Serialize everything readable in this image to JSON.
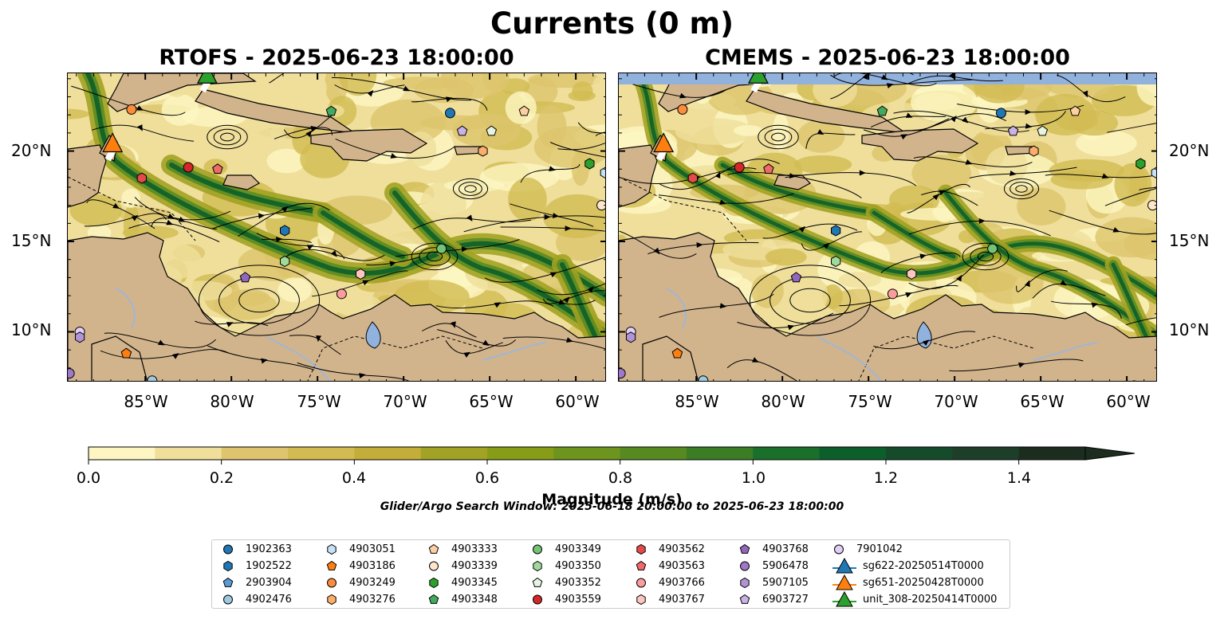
{
  "figure": {
    "title": "Currents (0 m)",
    "search_window": "Glider/Argo Search Window: 2025-06-18 20:00:00 to 2025-06-23 18:00:00"
  },
  "chart_data": [
    {
      "type": "heatmap",
      "title": "RTOFS - 2025-06-23 18:00:00",
      "x_ticks": [
        "85°W",
        "80°W",
        "75°W",
        "70°W",
        "65°W",
        "60°W"
      ],
      "y_ticks": [
        "20°N",
        "15°N",
        "10°N"
      ],
      "xlim": [
        -89.5,
        -58.2
      ],
      "ylim": [
        7.2,
        24.3
      ],
      "y_ticks_side": "left"
    },
    {
      "type": "heatmap",
      "title": "CMEMS - 2025-06-23 18:00:00",
      "x_ticks": [
        "85°W",
        "80°W",
        "75°W",
        "70°W",
        "65°W",
        "60°W"
      ],
      "y_ticks": [
        "20°N",
        "15°N",
        "10°N"
      ],
      "xlim": [
        -89.5,
        -58.2
      ],
      "ylim": [
        7.2,
        24.3
      ],
      "y_ticks_side": "right"
    }
  ],
  "colorbar": {
    "label": "Magnitude (m/s)",
    "ticks": [
      "0.0",
      "0.2",
      "0.4",
      "0.6",
      "0.8",
      "1.0",
      "1.2",
      "1.4"
    ],
    "range": [
      0,
      1.5
    ],
    "extend": "max",
    "colors": [
      "#fdf6c2",
      "#efdf9b",
      "#ddc46d",
      "#d2bc52",
      "#c2ae39",
      "#a2a224",
      "#889d16",
      "#6d941c",
      "#568a21",
      "#3a7d25",
      "#1a6f2b",
      "#0c5f2a",
      "#154b2b",
      "#1d3f29",
      "#1c2d1f"
    ]
  },
  "legend": {
    "items": [
      {
        "label": "1902363",
        "marker": "circle",
        "color": "#1f77b4"
      },
      {
        "label": "1902522",
        "marker": "hexagon",
        "color": "#1f77b4"
      },
      {
        "label": "2903904",
        "marker": "pentagon",
        "color": "#5b9bd5"
      },
      {
        "label": "4902476",
        "marker": "circle",
        "color": "#9ecae1"
      },
      {
        "label": "4903051",
        "marker": "hexagon",
        "color": "#c6e2f7"
      },
      {
        "label": "4903186",
        "marker": "pentagon",
        "color": "#ff7f0e"
      },
      {
        "label": "4903249",
        "marker": "circle",
        "color": "#fd8d3c"
      },
      {
        "label": "4903276",
        "marker": "hexagon",
        "color": "#fdae6b"
      },
      {
        "label": "4903333",
        "marker": "pentagon",
        "color": "#fdd0a2"
      },
      {
        "label": "4903339",
        "marker": "circle",
        "color": "#fee6ce"
      },
      {
        "label": "4903345",
        "marker": "hexagon",
        "color": "#2ca02c"
      },
      {
        "label": "4903348",
        "marker": "pentagon",
        "color": "#41ab5d"
      },
      {
        "label": "4903349",
        "marker": "circle",
        "color": "#74c476"
      },
      {
        "label": "4903350",
        "marker": "hexagon",
        "color": "#a1d99b"
      },
      {
        "label": "4903352",
        "marker": "pentagon",
        "color": "#e5f5e0"
      },
      {
        "label": "4903559",
        "marker": "circle",
        "color": "#d62728"
      },
      {
        "label": "4903562",
        "marker": "hexagon",
        "color": "#e34a4a"
      },
      {
        "label": "4903563",
        "marker": "pentagon",
        "color": "#f06a6a"
      },
      {
        "label": "4903766",
        "marker": "circle",
        "color": "#fc9d9d"
      },
      {
        "label": "4903767",
        "marker": "hexagon",
        "color": "#fcc5c0"
      },
      {
        "label": "4903768",
        "marker": "pentagon",
        "color": "#9467bd"
      },
      {
        "label": "5906478",
        "marker": "circle",
        "color": "#9e78c9"
      },
      {
        "label": "5907105",
        "marker": "hexagon",
        "color": "#b294d4"
      },
      {
        "label": "6903727",
        "marker": "pentagon",
        "color": "#c8b2e6"
      },
      {
        "label": "7901042",
        "marker": "circle",
        "color": "#e1cff5"
      },
      {
        "label": "sg622-20250514T0000",
        "marker": "triangle-line",
        "color": "#1f77b4"
      },
      {
        "label": "sg651-20250428T0000",
        "marker": "triangle-line",
        "color": "#ff7f0e"
      },
      {
        "label": "unit_308-20250414T0000",
        "marker": "triangle-line",
        "color": "#2ca02c"
      }
    ]
  },
  "floats": [
    {
      "id": "4903249",
      "lon": -85.8,
      "lat": 22.3,
      "shape": "circle",
      "color": "#fd8d3c"
    },
    {
      "id": "4903559",
      "lon": -82.5,
      "lat": 19.1,
      "shape": "circle",
      "color": "#d62728"
    },
    {
      "id": "4903563",
      "lon": -80.8,
      "lat": 19.0,
      "shape": "pentagon",
      "color": "#f06a6a"
    },
    {
      "id": "4903562",
      "lon": -85.2,
      "lat": 18.5,
      "shape": "hexagon",
      "color": "#e34a4a"
    },
    {
      "id": "4903348",
      "lon": -74.2,
      "lat": 22.2,
      "shape": "pentagon",
      "color": "#41ab5d"
    },
    {
      "id": "1902363",
      "lon": -67.3,
      "lat": 22.1,
      "shape": "circle",
      "color": "#1f77b4"
    },
    {
      "id": "6903727",
      "lon": -66.6,
      "lat": 21.1,
      "shape": "pentagon",
      "color": "#c8b2e6"
    },
    {
      "id": "4903352",
      "lon": -64.9,
      "lat": 21.1,
      "shape": "pentagon",
      "color": "#e5f5e0"
    },
    {
      "id": "4903333",
      "lon": -63.0,
      "lat": 22.2,
      "shape": "pentagon",
      "color": "#fdd0a2"
    },
    {
      "id": "4903276",
      "lon": -65.4,
      "lat": 20.0,
      "shape": "hexagon",
      "color": "#fdae6b"
    },
    {
      "id": "4903345",
      "lon": -59.2,
      "lat": 19.3,
      "shape": "hexagon",
      "color": "#2ca02c"
    },
    {
      "id": "4903051",
      "lon": -58.3,
      "lat": 18.8,
      "shape": "hexagon",
      "color": "#c6e2f7"
    },
    {
      "id": "4903339",
      "lon": -58.5,
      "lat": 17.0,
      "shape": "circle",
      "color": "#fee6ce"
    },
    {
      "id": "1902522",
      "lon": -76.9,
      "lat": 15.6,
      "shape": "hexagon",
      "color": "#1f77b4"
    },
    {
      "id": "4903350",
      "lon": -76.9,
      "lat": 13.9,
      "shape": "hexagon",
      "color": "#a1d99b"
    },
    {
      "id": "4903349",
      "lon": -67.8,
      "lat": 14.6,
      "shape": "circle",
      "color": "#74c476"
    },
    {
      "id": "4903768",
      "lon": -79.2,
      "lat": 13.0,
      "shape": "pentagon",
      "color": "#9467bd"
    },
    {
      "id": "4903767",
      "lon": -72.5,
      "lat": 13.2,
      "shape": "hexagon",
      "color": "#fcc5c0"
    },
    {
      "id": "4903766",
      "lon": -73.6,
      "lat": 12.1,
      "shape": "circle",
      "color": "#fc9d9d"
    },
    {
      "id": "7901042",
      "lon": -88.8,
      "lat": 10.0,
      "shape": "circle",
      "color": "#e1cff5"
    },
    {
      "id": "5907105",
      "lon": -88.8,
      "lat": 9.7,
      "shape": "hexagon",
      "color": "#b294d4"
    },
    {
      "id": "4903186",
      "lon": -86.1,
      "lat": 8.8,
      "shape": "pentagon",
      "color": "#ff7f0e"
    },
    {
      "id": "5906478",
      "lon": -89.4,
      "lat": 7.7,
      "shape": "circle",
      "color": "#9e78c9"
    },
    {
      "id": "4902476",
      "lon": -84.6,
      "lat": 7.3,
      "shape": "circle",
      "color": "#9ecae1"
    }
  ],
  "gliders": [
    {
      "id": "sg651-20250428T0000",
      "lon": -86.9,
      "lat": 20.4,
      "color": "#ff7f0e"
    },
    {
      "id": "unit_308-20250414T0000",
      "lon": -81.4,
      "lat": 24.2,
      "color": "#2ca02c"
    }
  ]
}
